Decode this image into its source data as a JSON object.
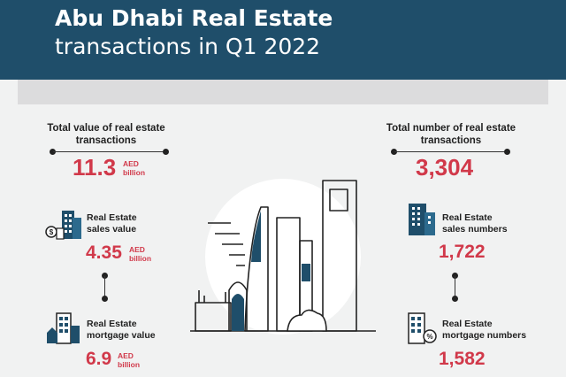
{
  "header": {
    "title": "Abu Dhabi Real Estate",
    "subtitle": "transactions in Q1 2022"
  },
  "left": {
    "total_value": {
      "label_line1": "Total value of real estate",
      "label_line2": "transactions",
      "value": "11.3",
      "unit_line1": "AED",
      "unit_line2": "billion"
    },
    "sales_value": {
      "label_line1": "Real Estate",
      "label_line2": "sales value",
      "value": "4.35",
      "unit_line1": "AED",
      "unit_line2": "billion"
    },
    "mortgage_value": {
      "label_line1": "Real Estate",
      "label_line2": "mortgage value",
      "value": "6.9",
      "unit_line1": "AED",
      "unit_line2": "billion"
    }
  },
  "right": {
    "total_number": {
      "label_line1": "Total number of real estate",
      "label_line2": "transactions",
      "value": "3,304"
    },
    "sales_numbers": {
      "label_line1": "Real Estate",
      "label_line2": "sales numbers",
      "value": "1,722"
    },
    "mortgage_numbers": {
      "label_line1": "Real Estate",
      "label_line2": "mortgage numbers",
      "value": "1,582"
    }
  },
  "colors": {
    "header_bg": "#1f4e6a",
    "accent_red": "#d1394a",
    "icon_blue": "#1f4e6a",
    "band_gray": "#dcdcdd"
  },
  "icons": [
    "buildings-coins-icon",
    "buildings-house-icon",
    "building-icon",
    "building-percent-icon",
    "skyline-illustration"
  ]
}
